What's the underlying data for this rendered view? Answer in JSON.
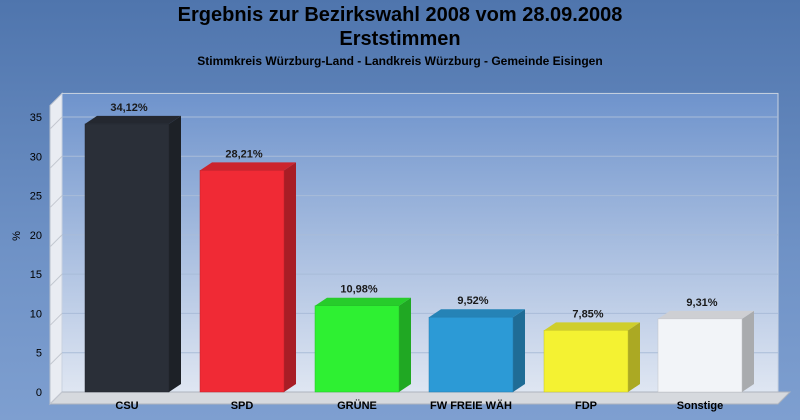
{
  "chart_data": {
    "type": "bar",
    "title": "Ergebnis zur Bezirkswahl 2008 vom 28.09.2008",
    "subtitle": "Erststimmen",
    "caption": "Stimmkreis Würzburg-Land - Landkreis Würzburg - Gemeinde Eisingen",
    "ylabel": "%",
    "ylim": [
      0,
      38
    ],
    "yticks": [
      0,
      5,
      10,
      15,
      20,
      25,
      30,
      35
    ],
    "categories": [
      "CSU",
      "SPD",
      "GRÜNE",
      "FW FREIE WÄH",
      "FDP",
      "Sonstige"
    ],
    "values": [
      34.12,
      28.21,
      10.98,
      9.52,
      7.85,
      9.31
    ],
    "labels": [
      "34,12%",
      "28,21%",
      "10,98%",
      "9,52%",
      "7,85%",
      "9,31%"
    ],
    "colors": [
      "#2a2f38",
      "#f02a35",
      "#2ef032",
      "#2c9ad6",
      "#f4f232",
      "#f2f4f8"
    ],
    "grid": true
  }
}
